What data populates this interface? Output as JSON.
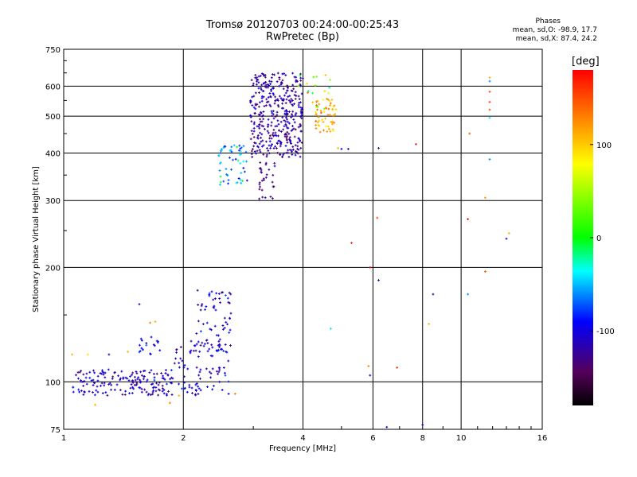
{
  "header": {
    "title_line1": "Tromsø 20120703 00:24:00-00:25:43",
    "title_line2": "RwPretec (Bp)",
    "info_title": "Phases",
    "info_o": "mean, sd,O: -98.9, 17.7",
    "info_x": "mean, sd,X: 87.4, 24.2"
  },
  "colorbar": {
    "title": "[deg]",
    "range": [
      -180,
      180
    ],
    "ticks": [
      "100",
      "0",
      "-100"
    ],
    "tick_values": [
      100,
      0,
      -100
    ]
  },
  "chart_data": {
    "type": "scatter",
    "title": "Tromsø 20120703 00:24:00-00:25:43",
    "subtitle": "RwPretec (Bp)",
    "xlabel": "Frequency [MHz]",
    "ylabel": "Stationary phase Virtual Height [km]",
    "x_scale": "log",
    "y_scale": "log",
    "xlim": [
      1,
      16
    ],
    "ylim": [
      75,
      750
    ],
    "x_ticks": [
      1,
      2,
      4,
      6,
      8,
      10,
      16
    ],
    "y_ticks": [
      75,
      100,
      200,
      300,
      400,
      500,
      600,
      750
    ],
    "grid": true,
    "color_variable": "phase [deg]",
    "clusters": [
      {
        "x_range": [
          1.05,
          1.9
        ],
        "y_range": [
          92,
          108
        ],
        "n": 170,
        "phase": -110,
        "phase_sd": 15
      },
      {
        "x_range": [
          1.9,
          2.6
        ],
        "y_range": [
          95,
          130
        ],
        "n": 70,
        "phase": -105,
        "phase_sd": 15
      },
      {
        "x_range": [
          2.15,
          2.65
        ],
        "y_range": [
          120,
          175
        ],
        "n": 70,
        "phase": -105,
        "phase_sd": 15
      },
      {
        "x_range": [
          1.55,
          1.75
        ],
        "y_range": [
          118,
          132
        ],
        "n": 18,
        "phase": -95,
        "phase_sd": 12
      },
      {
        "x_range": [
          2.0,
          2.2
        ],
        "y_range": [
          92,
          100
        ],
        "n": 12,
        "phase": -100,
        "phase_sd": 15
      },
      {
        "x_range": [
          2.45,
          2.9
        ],
        "y_range": [
          330,
          420
        ],
        "n": 55,
        "phase": -60,
        "phase_sd": 25
      },
      {
        "x_range": [
          2.95,
          4.0
        ],
        "y_range": [
          390,
          650
        ],
        "n": 380,
        "phase": -120,
        "phase_sd": 14
      },
      {
        "x_range": [
          3.1,
          3.4
        ],
        "y_range": [
          300,
          380
        ],
        "n": 30,
        "phase": -130,
        "phase_sd": 12
      },
      {
        "x_range": [
          4.3,
          4.85
        ],
        "y_range": [
          450,
          560
        ],
        "n": 55,
        "phase": 110,
        "phase_sd": 20
      },
      {
        "x_range": [
          3.8,
          4.7
        ],
        "y_range": [
          520,
          650
        ],
        "n": 20,
        "phase": 60,
        "phase_sd": 60
      }
    ],
    "points": [
      {
        "x": 1.05,
        "y": 118,
        "phase": 110
      },
      {
        "x": 1.15,
        "y": 118,
        "phase": 90
      },
      {
        "x": 1.3,
        "y": 118,
        "phase": -110
      },
      {
        "x": 1.45,
        "y": 120,
        "phase": 110
      },
      {
        "x": 1.55,
        "y": 160,
        "phase": -120
      },
      {
        "x": 1.65,
        "y": 143,
        "phase": 130
      },
      {
        "x": 1.7,
        "y": 144,
        "phase": 110
      },
      {
        "x": 1.2,
        "y": 87,
        "phase": 110
      },
      {
        "x": 1.85,
        "y": 88,
        "phase": 130
      },
      {
        "x": 1.95,
        "y": 92,
        "phase": 110
      },
      {
        "x": 2.6,
        "y": 93,
        "phase": -110
      },
      {
        "x": 2.7,
        "y": 93,
        "phase": 130
      },
      {
        "x": 4.7,
        "y": 138,
        "phase": -40
      },
      {
        "x": 5.3,
        "y": 232,
        "phase": 160
      },
      {
        "x": 5.9,
        "y": 200,
        "phase": 180
      },
      {
        "x": 5.85,
        "y": 110,
        "phase": 130
      },
      {
        "x": 5.9,
        "y": 104,
        "phase": -110
      },
      {
        "x": 6.15,
        "y": 270,
        "phase": 150
      },
      {
        "x": 6.2,
        "y": 185,
        "phase": -120
      },
      {
        "x": 6.2,
        "y": 412,
        "phase": -130
      },
      {
        "x": 6.5,
        "y": 76,
        "phase": -110
      },
      {
        "x": 6.9,
        "y": 109,
        "phase": 160
      },
      {
        "x": 7.7,
        "y": 422,
        "phase": 170
      },
      {
        "x": 8.0,
        "y": 77,
        "phase": -110
      },
      {
        "x": 8.3,
        "y": 142,
        "phase": 110
      },
      {
        "x": 8.5,
        "y": 170,
        "phase": -120
      },
      {
        "x": 4.9,
        "y": 412,
        "phase": 110
      },
      {
        "x": 5.0,
        "y": 410,
        "phase": -100
      },
      {
        "x": 5.2,
        "y": 410,
        "phase": -110
      },
      {
        "x": 10.5,
        "y": 450,
        "phase": 140
      },
      {
        "x": 10.4,
        "y": 268,
        "phase": 180
      },
      {
        "x": 10.4,
        "y": 170,
        "phase": -60
      },
      {
        "x": 11.5,
        "y": 195,
        "phase": 150
      },
      {
        "x": 11.5,
        "y": 305,
        "phase": 120
      },
      {
        "x": 11.8,
        "y": 385,
        "phase": -60
      },
      {
        "x": 11.8,
        "y": 495,
        "phase": -40
      },
      {
        "x": 11.8,
        "y": 520,
        "phase": 150
      },
      {
        "x": 11.8,
        "y": 545,
        "phase": 160
      },
      {
        "x": 11.8,
        "y": 580,
        "phase": 150
      },
      {
        "x": 11.8,
        "y": 618,
        "phase": -60
      },
      {
        "x": 11.8,
        "y": 632,
        "phase": 110
      },
      {
        "x": 13.0,
        "y": 238,
        "phase": -110
      },
      {
        "x": 13.2,
        "y": 246,
        "phase": 110
      }
    ]
  }
}
